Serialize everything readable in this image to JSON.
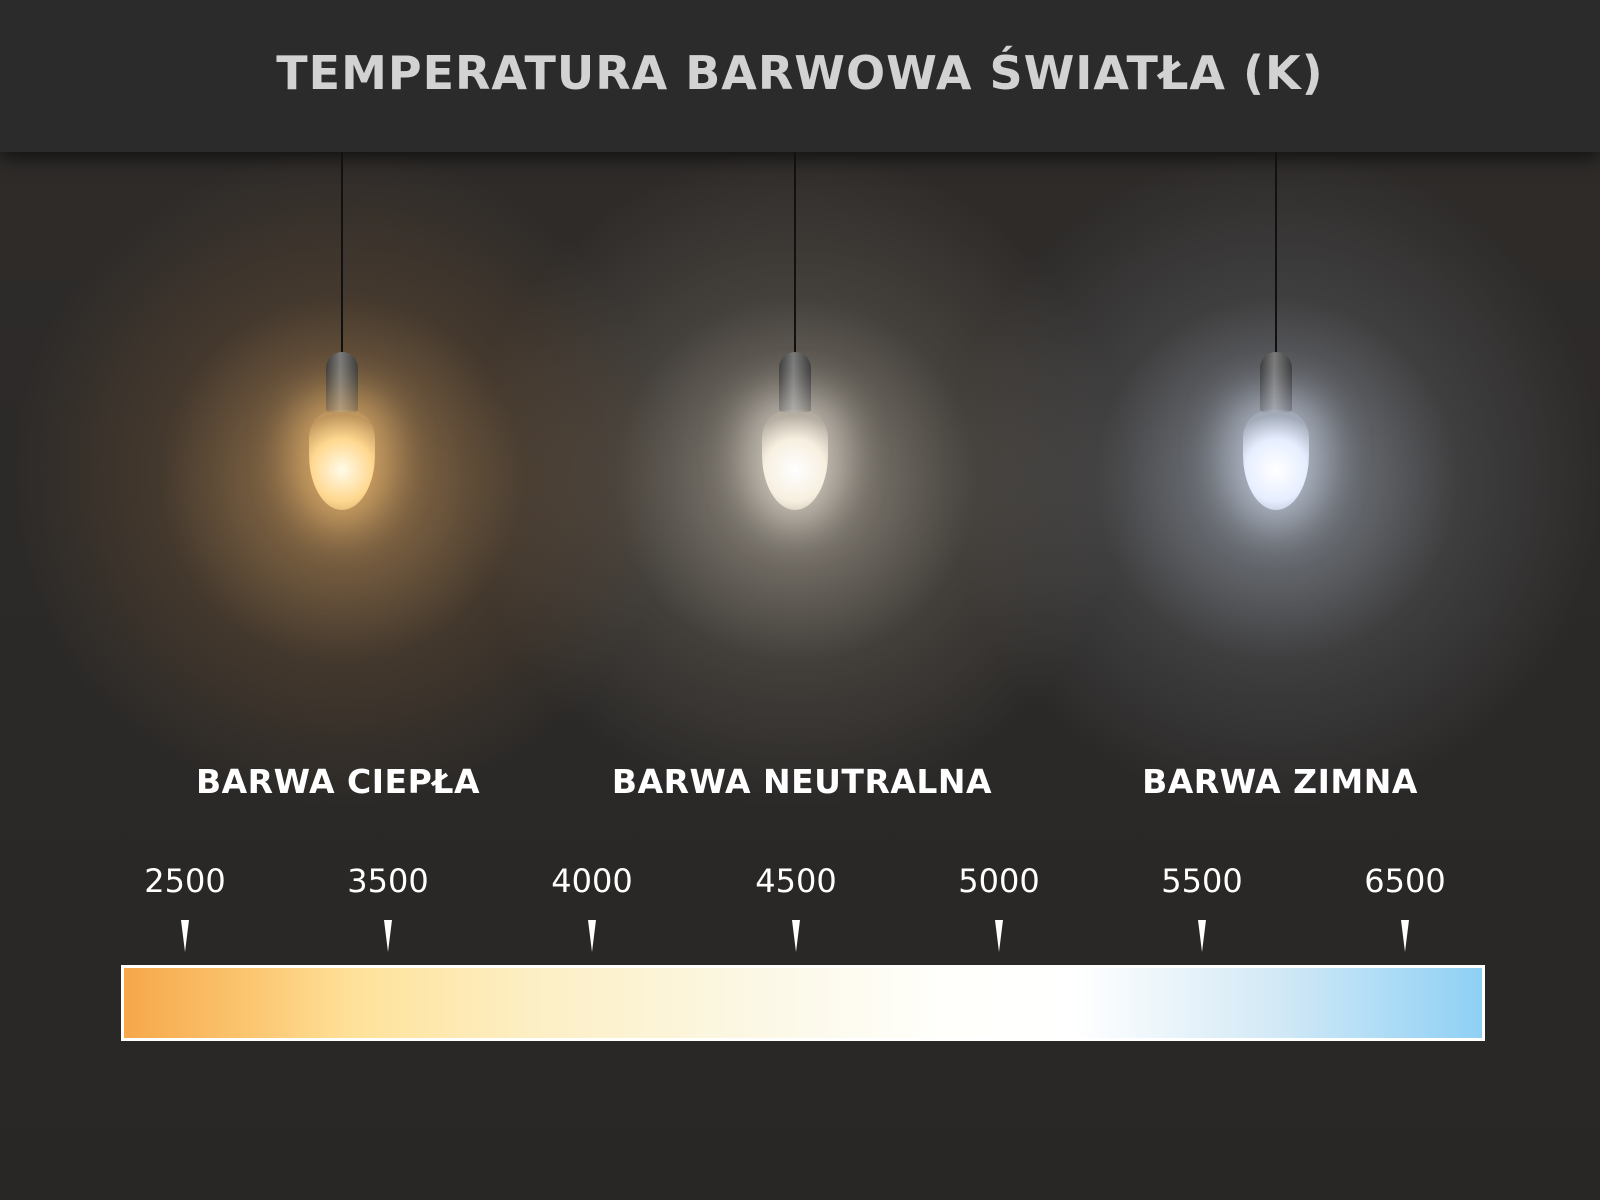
{
  "title": "TEMPERATURA BARWOWA ŚWIATŁA (K)",
  "categories": [
    {
      "label": "BARWA CIEPŁA",
      "glow_color": "#ffc06e"
    },
    {
      "label": "BARWA NEUTRALNA",
      "glow_color": "#fff5e1"
    },
    {
      "label": "BARWA ZIMNA",
      "glow_color": "#dcebff"
    }
  ],
  "scale": {
    "ticks": [
      "2500",
      "3500",
      "4000",
      "4500",
      "5000",
      "5500",
      "6500"
    ],
    "gradient_colors": [
      "#f6a74a",
      "#fee29a",
      "#fbf7e2",
      "#ffffff",
      "#8ed0f5"
    ]
  }
}
